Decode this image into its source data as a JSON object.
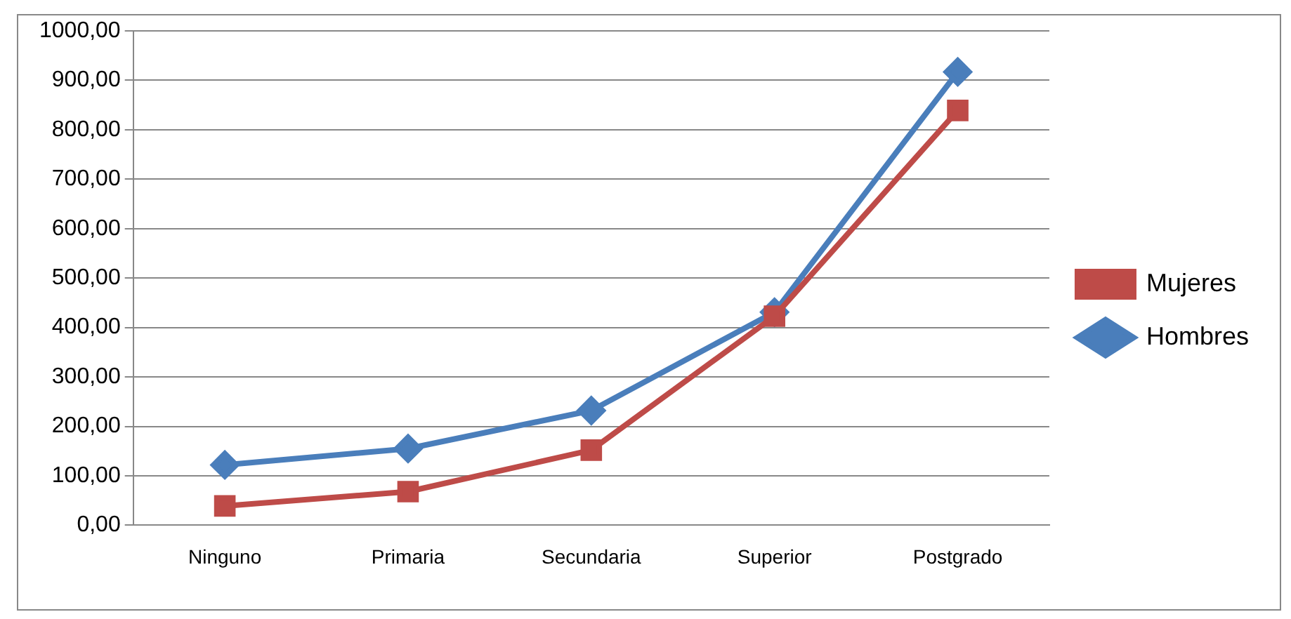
{
  "chart_data": {
    "type": "line",
    "categories": [
      "Ninguno",
      "Primaria",
      "Secundaria",
      "Superior",
      "Postgrado"
    ],
    "series": [
      {
        "name": "Hombres",
        "color": "#4a7ebb",
        "marker": "diamond",
        "values": [
          122,
          155,
          232,
          431,
          917
        ]
      },
      {
        "name": "Mujeres",
        "color": "#be4b48",
        "marker": "square",
        "values": [
          39,
          68,
          152,
          423,
          839
        ]
      }
    ],
    "ylim": [
      0,
      1000
    ],
    "yticks": [
      {
        "value": 0,
        "label": "0,00"
      },
      {
        "value": 100,
        "label": "100,00"
      },
      {
        "value": 200,
        "label": "200,00"
      },
      {
        "value": 300,
        "label": "300,00"
      },
      {
        "value": 400,
        "label": "400,00"
      },
      {
        "value": 500,
        "label": "500,00"
      },
      {
        "value": 600,
        "label": "600,00"
      },
      {
        "value": 700,
        "label": "700,00"
      },
      {
        "value": 800,
        "label": "800,00"
      },
      {
        "value": 900,
        "label": "900,00"
      },
      {
        "value": 1000,
        "label": "1000,00"
      }
    ],
    "grid": "y",
    "legend": "right",
    "line_style": "solid"
  }
}
